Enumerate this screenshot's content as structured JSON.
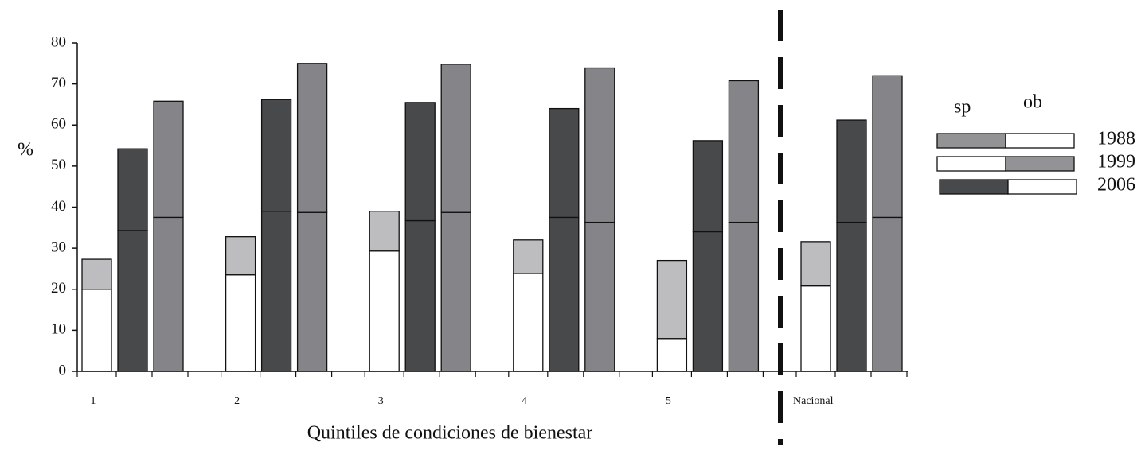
{
  "chart_data": {
    "type": "stacked-bar",
    "x_label": "Quintiles de condiciones de bienestar",
    "y_label": "%",
    "categories": [
      "1",
      "2",
      "3",
      "4",
      "5",
      "Nacional"
    ],
    "ylim": [
      0,
      80
    ],
    "yticks": [
      0,
      10,
      20,
      30,
      40,
      50,
      60,
      70,
      80
    ],
    "series": [
      {
        "name": "1988",
        "sp": [
          20,
          23.5,
          29.3,
          23.8,
          8,
          20.8
        ],
        "ob": [
          7.3,
          9.3,
          9.7,
          8.2,
          19,
          10.8
        ],
        "sp_color": "#ffffff",
        "ob_color": "#bdbdbf",
        "legend_sp_color": "#939396",
        "legend_ob_color": "#ffffff"
      },
      {
        "name": "1999",
        "sp": [
          34.3,
          39,
          36.7,
          37.5,
          34,
          36.3
        ],
        "ob": [
          19.9,
          27.2,
          28.8,
          26.5,
          22.2,
          24.9
        ],
        "sp_color": "#48494b",
        "ob_color": "#48494b",
        "legend_sp_color": "#ffffff",
        "legend_ob_color": "#939396"
      },
      {
        "name": "2006",
        "sp": [
          37.5,
          38.7,
          38.7,
          36.3,
          36.3,
          37.5
        ],
        "ob": [
          28.3,
          36.3,
          36.1,
          37.6,
          34.5,
          34.5
        ],
        "sp_color": "#858589",
        "ob_color": "#858589",
        "legend_sp_color": "#48494b",
        "legend_ob_color": "#ffffff"
      }
    ],
    "legend_columns": [
      "sp",
      "ob"
    ]
  }
}
